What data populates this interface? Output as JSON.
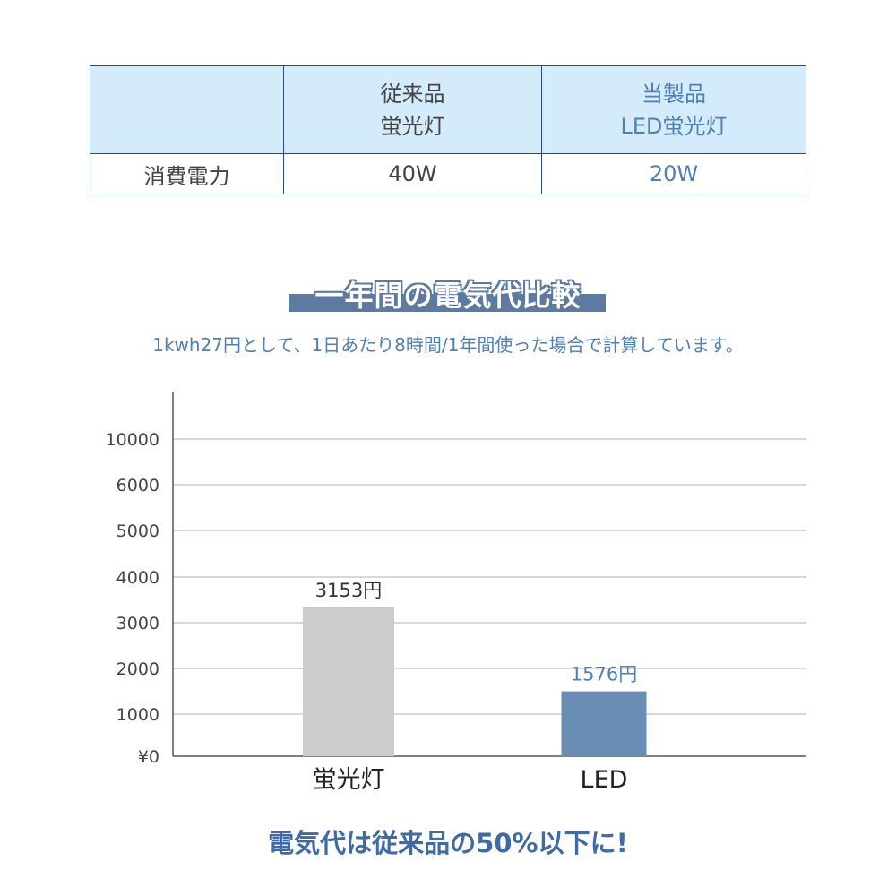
{
  "table": {
    "header": {
      "empty": "",
      "old_line1": "従来品",
      "old_line2": "蛍光灯",
      "new_line1": "当製品",
      "new_line2": "LED蛍光灯"
    },
    "row": {
      "label": "消費電力",
      "old_value": "40W",
      "new_value": "20W"
    }
  },
  "section_title": "一年間の電気代比較",
  "subtitle": "1kwh27円として、1日あたり8時間/1年間使った場合で計算しています。",
  "footer": "電気代は従来品の50%以下に!",
  "colors": {
    "old_bar": "#cccccc",
    "new_bar": "#6a8db6",
    "old_label": "#333333",
    "new_label": "#4f7fb3",
    "grid": "#d7d7d7"
  },
  "chart_data": {
    "type": "bar",
    "categories": [
      "蛍光灯",
      "LED"
    ],
    "values": [
      3153,
      1576
    ],
    "data_labels": [
      "3153円",
      "1576円"
    ],
    "y_tick_labels": [
      "¥0",
      "1000",
      "2000",
      "3000",
      "4000",
      "5000",
      "6000",
      "10000"
    ],
    "grid": true,
    "legend": "none"
  }
}
